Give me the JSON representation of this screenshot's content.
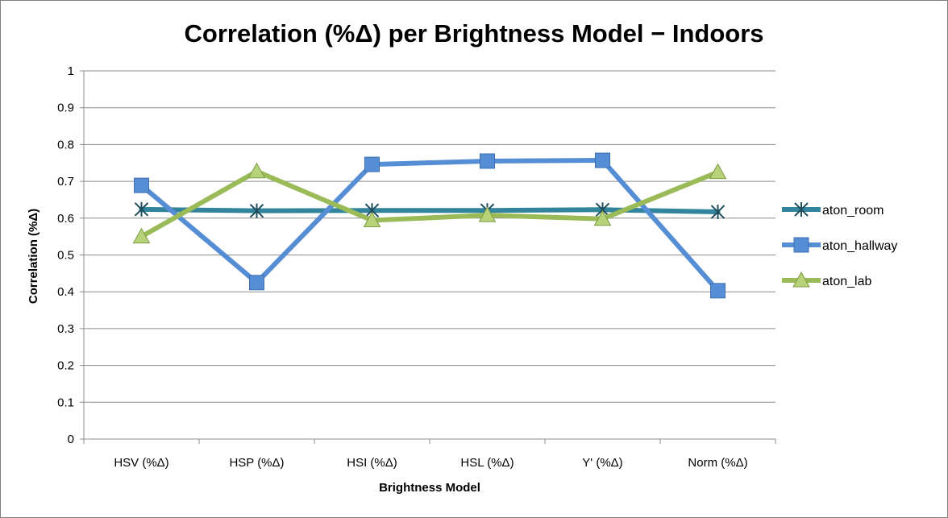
{
  "chart_data": {
    "type": "line",
    "title": "Correlation (%Δ) per Brightness Model − Indoors",
    "xlabel": "Brightness Model",
    "ylabel": "Correlation (%Δ)",
    "categories": [
      "HSV (%Δ)",
      "HSP (%Δ)",
      "HSI (%Δ)",
      "HSL (%Δ)",
      "Y' (%Δ)",
      "Norm (%Δ)"
    ],
    "ylim": [
      0,
      1
    ],
    "yticks": [
      0,
      0.1,
      0.2,
      0.3,
      0.4,
      0.5,
      0.6,
      0.7,
      0.8,
      0.9,
      1
    ],
    "ytick_labels": [
      "0",
      "0.1",
      "0.2",
      "0.3",
      "0.4",
      "0.5",
      "0.6",
      "0.7",
      "0.8",
      "0.9",
      "1"
    ],
    "grid": "horizontal",
    "legend_position": "right",
    "series": [
      {
        "name": "aton_room",
        "values": [
          0.624,
          0.62,
          0.621,
          0.621,
          0.623,
          0.617
        ],
        "color": "#31849b",
        "marker": "asterisk"
      },
      {
        "name": "aton_hallway",
        "values": [
          0.689,
          0.425,
          0.746,
          0.755,
          0.757,
          0.403
        ],
        "color": "#558ed5",
        "marker": "square"
      },
      {
        "name": "aton_lab",
        "values": [
          0.55,
          0.727,
          0.594,
          0.608,
          0.598,
          0.725
        ],
        "color": "#9bbb59",
        "marker": "triangle"
      }
    ]
  }
}
